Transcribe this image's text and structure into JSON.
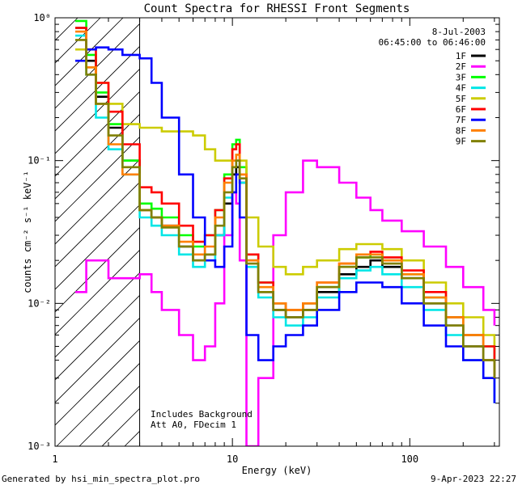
{
  "chart_data": {
    "type": "line",
    "title": "Count Spectra for RHESSI Front Segments",
    "xlabel": "Energy (keV)",
    "ylabel": "counts cm⁻² s⁻¹ keV⁻¹",
    "xscale": "log",
    "yscale": "log",
    "xlim": [
      1,
      320
    ],
    "ylim": [
      0.001,
      1
    ],
    "x_ticks": [
      {
        "value": 1,
        "label": "1"
      },
      {
        "value": 10,
        "label": "10"
      },
      {
        "value": 100,
        "label": "100"
      }
    ],
    "y_ticks": [
      {
        "value": 1,
        "label": "10⁰"
      },
      {
        "value": 0.1,
        "label": "10⁻¹"
      },
      {
        "value": 0.01,
        "label": "10⁻²"
      },
      {
        "value": 0.001,
        "label": "10⁻³"
      }
    ],
    "date": "8-Jul-2003",
    "time_range": "06:45:00 to 06:46:00",
    "legend_position": "top-right",
    "shaded_region": {
      "from": 1,
      "to": 3,
      "style": "hatched"
    },
    "threshold_line": 3,
    "annotations": [
      "Includes Background",
      "Att A0, FDecim 1"
    ],
    "series": [
      {
        "name": "1F",
        "color": "#000000",
        "x": [
          1.3,
          1.5,
          1.7,
          2.0,
          2.4,
          3.0,
          3.5,
          4.0,
          5.0,
          6.0,
          7.0,
          8.0,
          9.0,
          10.0,
          10.5,
          11.0,
          12.0,
          14.0,
          17.0,
          20.0,
          25.0,
          30.0,
          40.0,
          50.0,
          60.0,
          70.0,
          90.0,
          120.0,
          160.0,
          200.0,
          260.0,
          300.0
        ],
        "y": [
          0.85,
          0.5,
          0.28,
          0.17,
          0.1,
          0.045,
          0.04,
          0.035,
          0.025,
          0.02,
          0.022,
          0.03,
          0.05,
          0.08,
          0.09,
          0.07,
          0.02,
          0.012,
          0.009,
          0.008,
          0.009,
          0.012,
          0.016,
          0.018,
          0.02,
          0.018,
          0.015,
          0.01,
          0.007,
          0.005,
          0.004,
          0.003
        ]
      },
      {
        "name": "2F",
        "color": "#ff00ff",
        "x": [
          1.3,
          1.5,
          1.7,
          2.0,
          2.4,
          3.0,
          3.5,
          4.0,
          5.0,
          6.0,
          7.0,
          8.0,
          9.0,
          10.0,
          10.5,
          11.0,
          12.0,
          14.0,
          17.0,
          20.0,
          25.0,
          30.0,
          40.0,
          50.0,
          60.0,
          70.0,
          90.0,
          120.0,
          160.0,
          200.0,
          260.0,
          300.0
        ],
        "y": [
          0.012,
          0.02,
          0.02,
          0.015,
          0.015,
          0.016,
          0.012,
          0.009,
          0.006,
          0.004,
          0.005,
          0.01,
          0.03,
          0.06,
          0.05,
          0.02,
          0.001,
          0.003,
          0.03,
          0.06,
          0.1,
          0.09,
          0.07,
          0.055,
          0.045,
          0.038,
          0.032,
          0.025,
          0.018,
          0.013,
          0.009,
          0.007
        ]
      },
      {
        "name": "3F",
        "color": "#00ff00",
        "x": [
          1.3,
          1.5,
          1.7,
          2.0,
          2.4,
          3.0,
          3.5,
          4.0,
          5.0,
          6.0,
          7.0,
          8.0,
          9.0,
          10.0,
          10.5,
          11.0,
          12.0,
          14.0,
          17.0,
          20.0,
          25.0,
          30.0,
          40.0,
          50.0,
          60.0,
          70.0,
          90.0,
          120.0,
          160.0,
          200.0,
          260.0,
          300.0
        ],
        "y": [
          0.95,
          0.55,
          0.3,
          0.18,
          0.1,
          0.05,
          0.046,
          0.04,
          0.03,
          0.025,
          0.03,
          0.045,
          0.08,
          0.13,
          0.14,
          0.09,
          0.022,
          0.014,
          0.01,
          0.009,
          0.01,
          0.013,
          0.018,
          0.021,
          0.022,
          0.02,
          0.016,
          0.011,
          0.008,
          0.006,
          0.005,
          0.004
        ]
      },
      {
        "name": "4F",
        "color": "#00e6e6",
        "x": [
          1.3,
          1.5,
          1.7,
          2.0,
          2.4,
          3.0,
          3.5,
          4.0,
          5.0,
          6.0,
          7.0,
          8.0,
          9.0,
          10.0,
          10.5,
          11.0,
          12.0,
          14.0,
          17.0,
          20.0,
          25.0,
          30.0,
          40.0,
          50.0,
          60.0,
          70.0,
          90.0,
          120.0,
          160.0,
          200.0,
          260.0,
          300.0
        ],
        "y": [
          0.75,
          0.4,
          0.2,
          0.12,
          0.08,
          0.04,
          0.035,
          0.03,
          0.022,
          0.018,
          0.02,
          0.03,
          0.055,
          0.09,
          0.1,
          0.07,
          0.018,
          0.011,
          0.008,
          0.007,
          0.008,
          0.011,
          0.015,
          0.017,
          0.018,
          0.016,
          0.013,
          0.009,
          0.006,
          0.004,
          0.003,
          0.002
        ]
      },
      {
        "name": "5F",
        "color": "#cccc00",
        "x": [
          1.3,
          1.5,
          1.7,
          2.0,
          2.4,
          3.0,
          3.5,
          4.0,
          5.0,
          6.0,
          7.0,
          8.0,
          9.0,
          10.0,
          10.5,
          11.0,
          12.0,
          14.0,
          17.0,
          20.0,
          25.0,
          30.0,
          40.0,
          50.0,
          60.0,
          70.0,
          90.0,
          120.0,
          160.0,
          200.0,
          260.0,
          300.0
        ],
        "y": [
          0.6,
          0.45,
          0.35,
          0.25,
          0.18,
          0.17,
          0.17,
          0.16,
          0.16,
          0.15,
          0.12,
          0.1,
          0.1,
          0.12,
          0.13,
          0.1,
          0.04,
          0.025,
          0.018,
          0.016,
          0.018,
          0.02,
          0.024,
          0.026,
          0.026,
          0.024,
          0.02,
          0.014,
          0.01,
          0.008,
          0.006,
          0.005
        ]
      },
      {
        "name": "6F",
        "color": "#ff0000",
        "x": [
          1.3,
          1.5,
          1.7,
          2.0,
          2.4,
          3.0,
          3.5,
          4.0,
          5.0,
          6.0,
          7.0,
          8.0,
          9.0,
          10.0,
          10.5,
          11.0,
          12.0,
          14.0,
          17.0,
          20.0,
          25.0,
          30.0,
          40.0,
          50.0,
          60.0,
          70.0,
          90.0,
          120.0,
          160.0,
          200.0,
          260.0,
          300.0
        ],
        "y": [
          0.85,
          0.6,
          0.35,
          0.22,
          0.13,
          0.065,
          0.06,
          0.05,
          0.035,
          0.027,
          0.03,
          0.045,
          0.075,
          0.12,
          0.13,
          0.08,
          0.022,
          0.014,
          0.01,
          0.009,
          0.01,
          0.014,
          0.019,
          0.022,
          0.023,
          0.021,
          0.017,
          0.012,
          0.008,
          0.006,
          0.005,
          0.004
        ]
      },
      {
        "name": "7F",
        "color": "#0000ff",
        "x": [
          1.3,
          1.5,
          1.7,
          2.0,
          2.4,
          3.0,
          3.5,
          4.0,
          5.0,
          6.0,
          7.0,
          8.0,
          9.0,
          10.0,
          10.5,
          11.0,
          12.0,
          14.0,
          17.0,
          20.0,
          25.0,
          30.0,
          40.0,
          50.0,
          60.0,
          70.0,
          90.0,
          120.0,
          160.0,
          200.0,
          260.0,
          300.0
        ],
        "y": [
          0.5,
          0.6,
          0.62,
          0.6,
          0.55,
          0.52,
          0.35,
          0.2,
          0.08,
          0.04,
          0.02,
          0.018,
          0.025,
          0.06,
          0.08,
          0.04,
          0.006,
          0.004,
          0.005,
          0.006,
          0.007,
          0.009,
          0.012,
          0.014,
          0.014,
          0.013,
          0.01,
          0.007,
          0.005,
          0.004,
          0.003,
          0.002
        ]
      },
      {
        "name": "8F",
        "color": "#ff8000",
        "x": [
          1.3,
          1.5,
          1.7,
          2.0,
          2.4,
          3.0,
          3.5,
          4.0,
          5.0,
          6.0,
          7.0,
          8.0,
          9.0,
          10.0,
          10.5,
          11.0,
          12.0,
          14.0,
          17.0,
          20.0,
          25.0,
          30.0,
          40.0,
          50.0,
          60.0,
          70.0,
          90.0,
          120.0,
          160.0,
          200.0,
          260.0,
          300.0
        ],
        "y": [
          0.8,
          0.45,
          0.25,
          0.13,
          0.08,
          0.045,
          0.04,
          0.035,
          0.027,
          0.022,
          0.025,
          0.04,
          0.07,
          0.1,
          0.11,
          0.08,
          0.02,
          0.013,
          0.01,
          0.009,
          0.01,
          0.014,
          0.019,
          0.022,
          0.022,
          0.02,
          0.016,
          0.011,
          0.008,
          0.006,
          0.004,
          0.003
        ]
      },
      {
        "name": "9F",
        "color": "#808000",
        "x": [
          1.3,
          1.5,
          1.7,
          2.0,
          2.4,
          3.0,
          3.5,
          4.0,
          5.0,
          6.0,
          7.0,
          8.0,
          9.0,
          10.0,
          10.5,
          11.0,
          12.0,
          14.0,
          17.0,
          20.0,
          25.0,
          30.0,
          40.0,
          50.0,
          60.0,
          70.0,
          90.0,
          120.0,
          160.0,
          200.0,
          260.0,
          300.0
        ],
        "y": [
          0.7,
          0.4,
          0.25,
          0.15,
          0.09,
          0.045,
          0.04,
          0.034,
          0.025,
          0.02,
          0.022,
          0.035,
          0.06,
          0.09,
          0.1,
          0.075,
          0.019,
          0.012,
          0.009,
          0.008,
          0.009,
          0.013,
          0.018,
          0.021,
          0.021,
          0.019,
          0.015,
          0.01,
          0.007,
          0.005,
          0.004,
          0.003
        ]
      }
    ]
  },
  "footer": {
    "left": "Generated by hsi_min_spectra_plot.pro",
    "right": "9-Apr-2023 22:27"
  }
}
